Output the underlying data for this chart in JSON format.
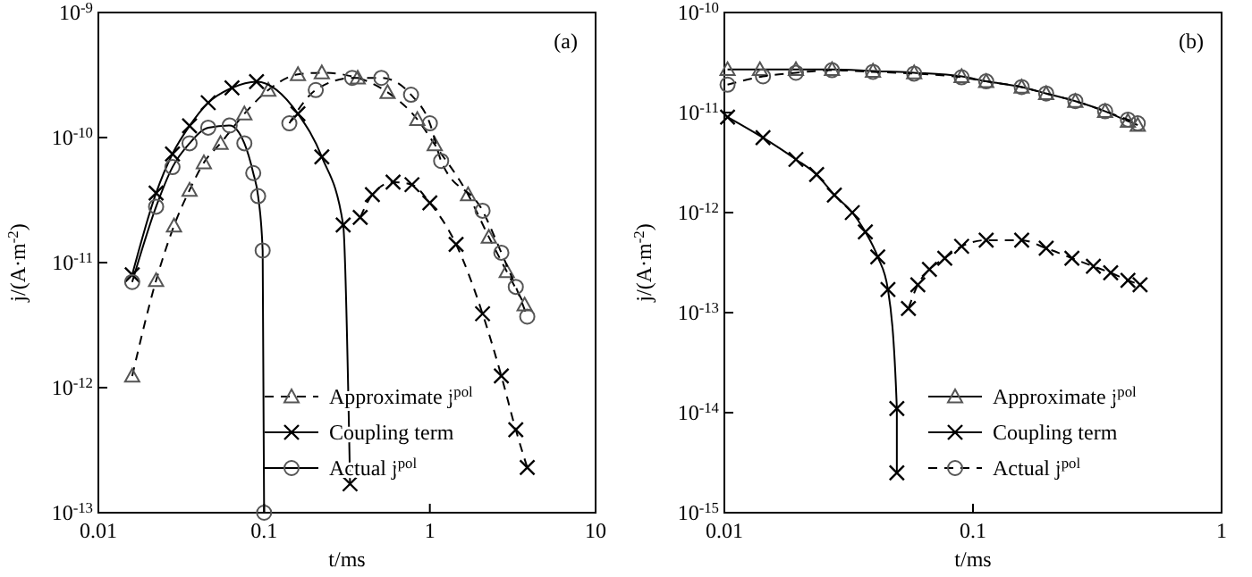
{
  "chart_data": [
    {
      "type": "line",
      "xlabel": "t/ms",
      "ylabel": "j/(A·m$^{-2}$)",
      "log": "xy",
      "legend": "bottom right",
      "annotations": [
        "(a)"
      ],
      "xlim": [
        0.01,
        10
      ],
      "xticks": [
        0.01,
        0.1,
        1,
        10
      ],
      "ylim": [
        1e-13,
        1e-09
      ],
      "yticks": [
        {
          "value": 1e-13,
          "label": "10$^{-13}$"
        },
        {
          "value": 1e-12,
          "label": "10$^{-12}$"
        },
        {
          "value": 1e-11,
          "label": "10$^{-11}$"
        },
        {
          "value": 1e-10,
          "label": "10$^{-10}$"
        },
        {
          "value": 1e-09,
          "label": "10$^{-9}$"
        }
      ],
      "series": [
        {
          "name": "Approximate j$^{pol}$",
          "color": "#555555",
          "marker": "triangle",
          "line_style": "dashed",
          "x": [
            0.016,
            0.0223,
            0.0286,
            0.0355,
            0.0433,
            0.0546,
            0.076,
            0.106,
            0.16,
            0.223,
            0.367,
            0.556,
            0.84,
            1.07,
            1.7,
            2.27,
            2.91,
            3.73
          ],
          "values": [
            1.24e-12,
            7.2e-12,
            1.97e-11,
            3.8e-11,
            6.3e-11,
            9e-11,
            1.55e-10,
            2.4e-10,
            3.2e-10,
            3.3e-10,
            3e-10,
            2.3e-10,
            1.4e-10,
            8.8e-11,
            3.5e-11,
            1.6e-11,
            8.5e-12,
            4.6e-12
          ]
        },
        {
          "name": "Coupling term",
          "color": "#000000",
          "marker": "cross",
          "line_style": "solid",
          "x": [
            0.016,
            0.0223,
            0.028,
            0.0355,
            0.046,
            0.064,
            0.09,
            0.16,
            0.223,
            0.3,
            0.33
          ],
          "values": [
            8e-12,
            3.6e-11,
            7.4e-11,
            1.24e-10,
            1.9e-10,
            2.5e-10,
            2.8e-10,
            1.55e-10,
            7e-11,
            2e-11,
            1.7e-13
          ]
        },
        {
          "color": "#000000",
          "marker": "cross",
          "line_style": "dashed",
          "x": [
            0.38,
            0.45,
            0.6,
            0.78,
            1.0,
            1.44,
            2.08,
            2.7,
            3.3,
            3.87
          ],
          "values": [
            2.3e-11,
            3.5e-11,
            4.4e-11,
            4.2e-11,
            3e-11,
            1.4e-11,
            3.9e-12,
            1.24e-12,
            4.6e-13,
            2.3e-13
          ]
        },
        {
          "name": "Actual j$^{pol}$",
          "color": "#555555",
          "marker": "circle",
          "line_style": "solid",
          "x": [
            0.016,
            0.0223,
            0.028,
            0.0355,
            0.046,
            0.062,
            0.076,
            0.086,
            0.092,
            0.098,
            0.1
          ],
          "values": [
            7e-12,
            2.8e-11,
            5.8e-11,
            9e-11,
            1.2e-10,
            1.25e-10,
            9e-11,
            5.2e-11,
            3.4e-11,
            1.25e-11,
            1e-13
          ]
        },
        {
          "color": "#555555",
          "marker": "circle",
          "line_style": "dashed",
          "x": [
            0.142,
            0.205,
            0.34,
            0.51,
            0.77,
            1.0,
            1.17,
            2.08,
            2.7,
            3.3,
            3.87
          ],
          "values": [
            1.3e-10,
            2.4e-10,
            3e-10,
            3e-10,
            2.2e-10,
            1.3e-10,
            6.5e-11,
            2.6e-11,
            1.2e-11,
            6.4e-12,
            3.7e-12
          ]
        }
      ]
    },
    {
      "type": "line",
      "xlabel": "t/ms",
      "ylabel": "j/(A·m$^{-2}$)",
      "log": "xy",
      "legend": "bottom",
      "annotations": [
        "(b)"
      ],
      "xlim": [
        0.01,
        1
      ],
      "xticks": [
        0.01,
        0.1,
        1
      ],
      "ylim": [
        1e-15,
        1e-10
      ],
      "yticks": [
        {
          "value": 1e-15,
          "label": "10$^{-15}$"
        },
        {
          "value": 1e-14,
          "label": "10$^{-14}$"
        },
        {
          "value": 1e-13,
          "label": "10$^{-13}$"
        },
        {
          "value": 1e-12,
          "label": "10$^{-12}$"
        },
        {
          "value": 1e-11,
          "label": "10$^{-11}$"
        },
        {
          "value": 1e-10,
          "label": "10$^{-10}$"
        }
      ],
      "series": [
        {
          "name": "Approximate j$^{pol}$",
          "color": "#555555",
          "marker": "triangle",
          "line_style": "solid",
          "x": [
            0.0103,
            0.0139,
            0.0194,
            0.0271,
            0.0396,
            0.058,
            0.09,
            0.113,
            0.157,
            0.197,
            0.258,
            0.34,
            0.42,
            0.46
          ],
          "values": [
            2.7e-11,
            2.7e-11,
            2.7e-11,
            2.7e-11,
            2.6e-11,
            2.5e-11,
            2.3e-11,
            2.05e-11,
            1.8e-11,
            1.55e-11,
            1.3e-11,
            1.03e-11,
            8.2e-12,
            7.5e-12
          ]
        },
        {
          "name": "Coupling term",
          "color": "#000000",
          "marker": "cross",
          "line_style": "solid",
          "x": [
            0.0103,
            0.0143,
            0.0194,
            0.0235,
            0.0277,
            0.0327,
            0.0369,
            0.0414,
            0.0455,
            0.0494,
            0.0494
          ],
          "values": [
            9e-12,
            5.6e-12,
            3.4e-12,
            2.4e-12,
            1.5e-12,
            1e-12,
            6.4e-13,
            3.6e-13,
            1.7e-13,
            1.1e-14,
            2.5e-15
          ]
        },
        {
          "color": "#000000",
          "marker": "cross",
          "line_style": "dashed",
          "x": [
            0.055,
            0.06,
            0.0668,
            0.077,
            0.09,
            0.113,
            0.157,
            0.197,
            0.25,
            0.305,
            0.358,
            0.42,
            0.47
          ],
          "values": [
            1.1e-13,
            1.9e-13,
            2.7e-13,
            3.5e-13,
            4.6e-13,
            5.3e-13,
            5.3e-13,
            4.4e-13,
            3.5e-13,
            2.9e-13,
            2.5e-13,
            2.1e-13,
            1.9e-13
          ]
        },
        {
          "name": "Actual j$^{pol}$",
          "color": "#555555",
          "marker": "circle",
          "line_style": "dashed",
          "x": [
            0.0103,
            0.0143,
            0.0194,
            0.0271,
            0.0396,
            0.058,
            0.09,
            0.113,
            0.157,
            0.197,
            0.258,
            0.34,
            0.42,
            0.46
          ],
          "values": [
            1.9e-11,
            2.3e-11,
            2.5e-11,
            2.65e-11,
            2.55e-11,
            2.45e-11,
            2.25e-11,
            2.05e-11,
            1.8e-11,
            1.55e-11,
            1.3e-11,
            1.03e-11,
            8.5e-12,
            7.8e-12
          ]
        }
      ]
    }
  ]
}
